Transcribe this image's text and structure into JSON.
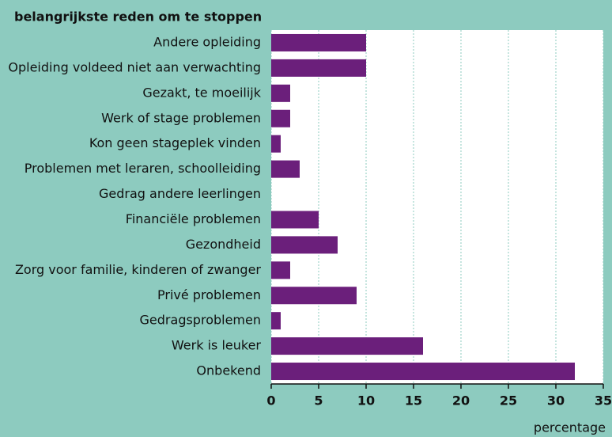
{
  "chart_data": {
    "type": "barh",
    "title": "belangrijkste reden om te stoppen",
    "x_label": "percentage",
    "categories": [
      "Andere opleiding",
      "Opleiding voldeed niet aan verwachting",
      "Gezakt, te moeilijk",
      "Werk of stage problemen",
      "Kon geen stageplek vinden",
      "Problemen met leraren, schoolleiding",
      "Gedrag andere leerlingen",
      "Financiële problemen",
      "Gezondheid",
      "Zorg voor familie, kinderen of zwanger",
      "Privé problemen",
      "Gedragsproblemen",
      "Werk is leuker",
      "Onbekend"
    ],
    "values": [
      10,
      10,
      2,
      2,
      1,
      3,
      0,
      5,
      7,
      2,
      9,
      1,
      16,
      32
    ],
    "color": "#6b1f7b",
    "xlim": [
      0,
      35
    ],
    "xticks": [
      0,
      5,
      10,
      15,
      20,
      25,
      30,
      35
    ],
    "grid": true
  }
}
